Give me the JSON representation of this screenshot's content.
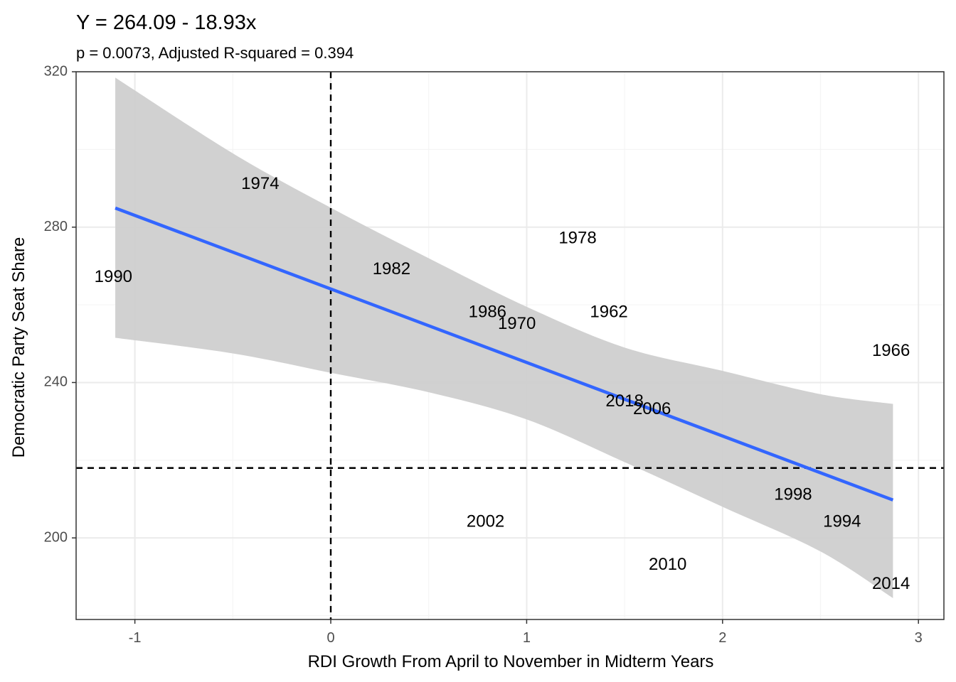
{
  "chart_data": {
    "type": "scatter",
    "title": "Y = 264.09 - 18.93x",
    "subtitle": "p = 0.0073, Adjusted R-squared = 0.394",
    "xlabel": "RDI Growth From April to November in Midterm Years",
    "ylabel": "Democratic Party Seat Share",
    "xlim": [
      -1.3,
      3.13
    ],
    "ylim": [
      179,
      320
    ],
    "x_ticks": [
      -1,
      0,
      1,
      2,
      3
    ],
    "x_tick_labels": [
      "-1",
      "0",
      "1",
      "2",
      "3"
    ],
    "y_ticks": [
      200,
      240,
      280,
      320
    ],
    "y_tick_labels": [
      "200",
      "240",
      "280",
      "320"
    ],
    "grid": true,
    "points": [
      {
        "label": "1962",
        "x": 1.42,
        "y": 258
      },
      {
        "label": "1966",
        "x": 2.86,
        "y": 248
      },
      {
        "label": "1970",
        "x": 0.95,
        "y": 255
      },
      {
        "label": "1974",
        "x": -0.36,
        "y": 291
      },
      {
        "label": "1978",
        "x": 1.26,
        "y": 277
      },
      {
        "label": "1982",
        "x": 0.31,
        "y": 269
      },
      {
        "label": "1986",
        "x": 0.8,
        "y": 258
      },
      {
        "label": "1990",
        "x": -1.11,
        "y": 267
      },
      {
        "label": "1994",
        "x": 2.61,
        "y": 204
      },
      {
        "label": "1998",
        "x": 2.36,
        "y": 211
      },
      {
        "label": "2002",
        "x": 0.79,
        "y": 204
      },
      {
        "label": "2006",
        "x": 1.64,
        "y": 233
      },
      {
        "label": "2010",
        "x": 1.72,
        "y": 193
      },
      {
        "label": "2014",
        "x": 2.86,
        "y": 188
      },
      {
        "label": "2018",
        "x": 1.5,
        "y": 235
      }
    ],
    "regression": {
      "intercept": 264.09,
      "slope": -18.93,
      "x_range": [
        -1.1,
        2.87
      ]
    },
    "confidence_band": [
      {
        "x": -1.1,
        "lower": 251.5,
        "upper": 318.5
      },
      {
        "x": -0.5,
        "lower": 247.5,
        "upper": 299.0
      },
      {
        "x": 0.0,
        "lower": 242.5,
        "upper": 285.0
      },
      {
        "x": 0.5,
        "lower": 237.5,
        "upper": 272.0
      },
      {
        "x": 1.0,
        "lower": 230.5,
        "upper": 259.5
      },
      {
        "x": 1.5,
        "lower": 219.5,
        "upper": 249.0
      },
      {
        "x": 2.0,
        "lower": 208.0,
        "upper": 243.0
      },
      {
        "x": 2.5,
        "lower": 196.5,
        "upper": 237.0
      },
      {
        "x": 2.87,
        "lower": 184.5,
        "upper": 234.5
      }
    ],
    "reference_lines": {
      "vertical_x": 0,
      "horizontal_y": 218
    },
    "colors": {
      "regression_line": "#3366ff",
      "confidence_band": "#cfcfcf",
      "grid_major": "#ebebeb",
      "grid_minor": "#f4f4f4",
      "panel_border": "#333333",
      "reference_line": "#000000"
    }
  }
}
